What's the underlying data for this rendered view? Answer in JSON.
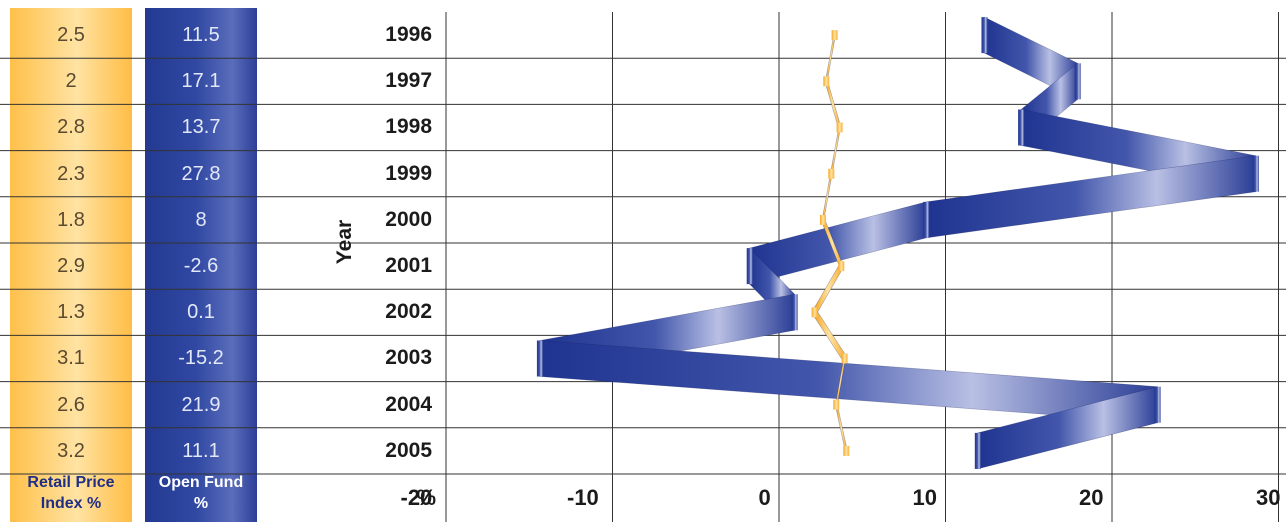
{
  "chart_data": {
    "type": "line",
    "title": "",
    "ylabel": "Year",
    "xlabel": "%",
    "x_ticks": [
      -20,
      -10,
      0,
      10,
      20,
      30
    ],
    "xlim": [
      -20,
      30
    ],
    "grid": true,
    "categories": [
      "1996",
      "1997",
      "1998",
      "1999",
      "2000",
      "2001",
      "2002",
      "2003",
      "2004",
      "2005"
    ],
    "series": [
      {
        "name": "Retail Price Index %",
        "color": "#ffc04a",
        "values": [
          2.5,
          2,
          2.8,
          2.3,
          1.8,
          2.9,
          1.3,
          3.1,
          2.6,
          3.2
        ],
        "labels": [
          "2.5",
          "2",
          "2.8",
          "2.3",
          "1.8",
          "2.9",
          "1.3",
          "3.1",
          "2.6",
          "3.2"
        ]
      },
      {
        "name": "Open Fund %",
        "color": "#2c3f98",
        "values": [
          11.5,
          17.1,
          13.7,
          27.8,
          8,
          -2.6,
          0.1,
          -15.2,
          21.9,
          11.1
        ],
        "labels": [
          "11.5",
          "17.1",
          "13.7",
          "27.8",
          "8",
          "-2.6",
          "0.1",
          "-15.2",
          "21.9",
          "11.1"
        ]
      }
    ]
  },
  "table": {
    "rpi_header_line1": "Retail Price",
    "rpi_header_line2": "Index %",
    "fund_header_line1": "Open Fund",
    "fund_header_line2": "%"
  }
}
